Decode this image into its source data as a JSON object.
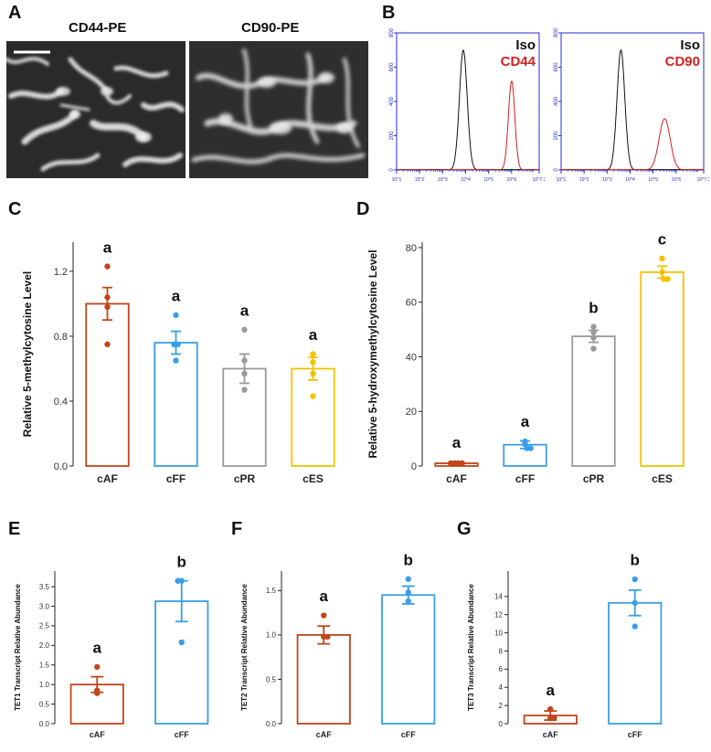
{
  "panels": {
    "A": "A",
    "B": "B",
    "C": "C",
    "D": "D",
    "E": "E",
    "F": "F",
    "G": "G"
  },
  "microscopy": {
    "left_title": "CD44-PE",
    "right_title": "CD90-PE"
  },
  "colors": {
    "cAF": "#c0451a",
    "cFF": "#3a9ee6",
    "cPR": "#9a9a9a",
    "cES": "#f2c200",
    "iso": "#111111",
    "marker": "#d42020",
    "flow_axis": "#2a2ad0"
  },
  "chart_data": [
    {
      "id": "B1",
      "type": "line",
      "legend": [
        "Iso",
        "CD44"
      ],
      "yticks": [
        "0",
        "200",
        "400",
        "600",
        "800"
      ],
      "ylim": [
        0,
        800
      ],
      "xticks": [
        "10^1",
        "10^2",
        "10^3",
        "10^4",
        "10^5",
        "10^6",
        "10^7.2"
      ],
      "xlim": [
        1,
        7.2
      ],
      "series": [
        {
          "name": "Iso",
          "peak_x": 3.9,
          "peak_y": 700,
          "width": 0.17
        },
        {
          "name": "CD44",
          "peak_x": 6.0,
          "peak_y": 520,
          "width": 0.14
        }
      ]
    },
    {
      "id": "B2",
      "type": "line",
      "legend": [
        "Iso",
        "CD90"
      ],
      "yticks": [
        "0",
        "200",
        "400",
        "600",
        "800"
      ],
      "ylim": [
        0,
        800
      ],
      "xticks": [
        "10^1",
        "10^2",
        "10^3",
        "10^4",
        "10^5",
        "10^6",
        "10^7.2"
      ],
      "xlim": [
        1,
        7.2
      ],
      "series": [
        {
          "name": "Iso",
          "peak_x": 3.6,
          "peak_y": 700,
          "width": 0.17
        },
        {
          "name": "CD90",
          "peak_x": 5.5,
          "peak_y": 300,
          "width": 0.24
        }
      ]
    },
    {
      "id": "C",
      "type": "bar",
      "ylabel": "Relative 5-methylcytosine Level",
      "categories": [
        "cAF",
        "cFF",
        "cPR",
        "cES"
      ],
      "values": [
        1.0,
        0.76,
        0.6,
        0.6
      ],
      "errors": [
        0.1,
        0.07,
        0.09,
        0.07
      ],
      "points": [
        [
          1.23,
          1.04,
          0.98,
          0.75
        ],
        [
          0.93,
          0.75,
          0.75,
          0.65
        ],
        [
          0.84,
          0.65,
          0.57,
          0.47
        ],
        [
          0.69,
          0.64,
          0.57,
          0.43
        ]
      ],
      "letters": [
        "a",
        "a",
        "a",
        "a"
      ],
      "yticks": [
        0.0,
        0.4,
        0.8,
        1.2
      ],
      "ytick_labels": [
        "0.0",
        "0.4",
        "0.8",
        "1.2"
      ],
      "ylim": [
        0,
        1.38
      ]
    },
    {
      "id": "D",
      "type": "bar",
      "ylabel": "Relative 5-hydroxymethylcytosine Level",
      "categories": [
        "cAF",
        "cFF",
        "cPR",
        "cES"
      ],
      "values": [
        1,
        7.8,
        47.5,
        71
      ],
      "errors": [
        0.5,
        1.4,
        2.2,
        2.2
      ],
      "points": [
        [
          1,
          1,
          1,
          1
        ],
        [
          9,
          8,
          6.5,
          6.5
        ],
        [
          51,
          49,
          47,
          43
        ],
        [
          76,
          71,
          68.5,
          68.5
        ]
      ],
      "letters": [
        "a",
        "a",
        "b",
        "c"
      ],
      "yticks": [
        0,
        20,
        40,
        60,
        80
      ],
      "ytick_labels": [
        "0",
        "20",
        "40",
        "60",
        "80"
      ],
      "ylim": [
        0,
        82
      ]
    },
    {
      "id": "E",
      "type": "bar",
      "ylabel": "TET1 Transcript Relative Abundance",
      "categories": [
        "cAF",
        "cFF"
      ],
      "values": [
        1.0,
        3.13
      ],
      "errors": [
        0.2,
        0.52
      ],
      "points": [
        [
          1.45,
          0.85,
          0.78
        ],
        [
          3.65,
          3.65,
          2.08
        ]
      ],
      "letters": [
        "a",
        "b"
      ],
      "yticks": [
        0.0,
        0.5,
        1.0,
        1.5,
        2.0,
        2.5,
        3.0,
        3.5
      ],
      "ytick_labels": [
        "0.0",
        "0.5",
        "1.0",
        "1.5",
        "2.0",
        "2.5",
        "3.0",
        "3.5"
      ],
      "ylim": [
        0,
        3.9
      ]
    },
    {
      "id": "F",
      "type": "bar",
      "ylabel": "TET2 Transcript Relative Abundance",
      "categories": [
        "cAF",
        "cFF"
      ],
      "values": [
        1.0,
        1.45
      ],
      "errors": [
        0.1,
        0.1
      ],
      "points": [
        [
          1.22,
          0.98,
          0.98
        ],
        [
          1.63,
          1.48,
          1.38
        ]
      ],
      "letters": [
        "a",
        "b"
      ],
      "yticks": [
        0.0,
        0.5,
        1.0,
        1.5
      ],
      "ytick_labels": [
        "0.0",
        "0.5",
        "1.0",
        "1.5"
      ],
      "ylim": [
        0,
        1.72
      ]
    },
    {
      "id": "G",
      "type": "bar",
      "ylabel": "TET3 Transcript Relative Abundance",
      "categories": [
        "cAF",
        "cFF"
      ],
      "values": [
        0.9,
        13.3
      ],
      "errors": [
        0.5,
        1.4
      ],
      "points": [
        [
          1.6,
          0.6,
          0.6
        ],
        [
          15.9,
          13.3,
          10.7
        ]
      ],
      "letters": [
        "a",
        "b"
      ],
      "yticks": [
        0,
        2,
        4,
        6,
        8,
        10,
        12,
        14
      ],
      "ytick_labels": [
        "0",
        "2",
        "4",
        "6",
        "8",
        "10",
        "12",
        "14"
      ],
      "ylim": [
        0,
        16.8
      ]
    }
  ]
}
